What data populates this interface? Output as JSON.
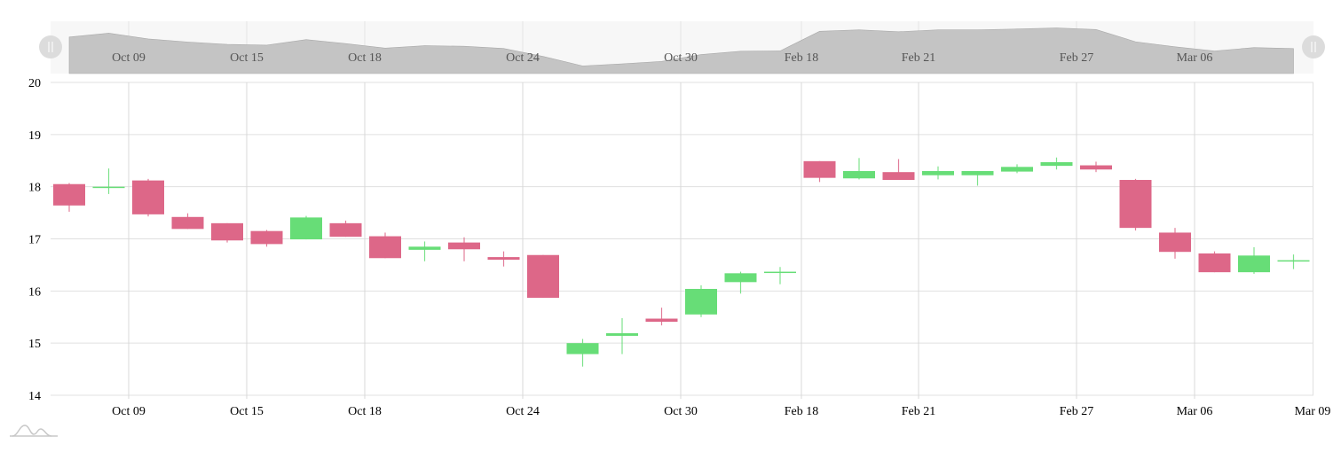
{
  "colors": {
    "up": "#67dd77",
    "down": "#dd6788",
    "grid": "#e0e0e0",
    "navigator_bg": "#f7f7f7",
    "navigator_area": "#c4c4c4",
    "handle": "#dcdcdc"
  },
  "navigator": {
    "labels": [
      "Oct 09",
      "Oct 15",
      "Oct 18",
      "Oct 24",
      "Oct 30",
      "Feb 18",
      "Feb 21",
      "Feb 27",
      "Mar 06"
    ],
    "left_handle": "scroll-handle-left",
    "right_handle": "scroll-handle-right"
  },
  "logo": "chart-logo-icon",
  "chart_data": {
    "type": "candlestick",
    "title": "",
    "xlabel": "",
    "ylabel": "",
    "ylim": [
      14,
      20
    ],
    "yticks": [
      14,
      15,
      16,
      17,
      18,
      19,
      20
    ],
    "grid": true,
    "legend": null,
    "x_tick_labels": [
      "Oct 09",
      "Oct 15",
      "Oct 18",
      "Oct 24",
      "Oct 30",
      "Feb 18",
      "Feb 21",
      "Feb 27",
      "Mar 06",
      "Mar 09"
    ],
    "candles": [
      {
        "i": 0,
        "open": 18.05,
        "high": 18.07,
        "low": 17.52,
        "close": 17.64
      },
      {
        "i": 1,
        "open": 18.0,
        "high": 18.35,
        "low": 17.86,
        "close": 18.0
      },
      {
        "i": 2,
        "open": 18.12,
        "high": 18.15,
        "low": 17.43,
        "close": 17.47
      },
      {
        "i": 3,
        "open": 17.42,
        "high": 17.49,
        "low": 17.19,
        "close": 17.19
      },
      {
        "i": 4,
        "open": 17.3,
        "high": 17.3,
        "low": 16.93,
        "close": 16.97
      },
      {
        "i": 5,
        "open": 17.15,
        "high": 17.17,
        "low": 16.85,
        "close": 16.9
      },
      {
        "i": 6,
        "open": 16.99,
        "high": 17.44,
        "low": 16.99,
        "close": 17.41
      },
      {
        "i": 7,
        "open": 17.3,
        "high": 17.35,
        "low": 17.04,
        "close": 17.04
      },
      {
        "i": 8,
        "open": 17.05,
        "high": 17.12,
        "low": 16.63,
        "close": 16.63
      },
      {
        "i": 9,
        "open": 16.79,
        "high": 16.95,
        "low": 16.57,
        "close": 16.85
      },
      {
        "i": 10,
        "open": 16.93,
        "high": 17.03,
        "low": 16.57,
        "close": 16.8
      },
      {
        "i": 11,
        "open": 16.65,
        "high": 16.76,
        "low": 16.47,
        "close": 16.6
      },
      {
        "i": 12,
        "open": 16.69,
        "high": 16.69,
        "low": 15.87,
        "close": 15.87
      },
      {
        "i": 13,
        "open": 14.79,
        "high": 15.08,
        "low": 14.55,
        "close": 15.0
      },
      {
        "i": 14,
        "open": 15.14,
        "high": 15.48,
        "low": 14.79,
        "close": 15.19
      },
      {
        "i": 15,
        "open": 15.47,
        "high": 15.68,
        "low": 15.34,
        "close": 15.41
      },
      {
        "i": 16,
        "open": 15.55,
        "high": 16.11,
        "low": 15.5,
        "close": 16.04
      },
      {
        "i": 17,
        "open": 16.17,
        "high": 16.37,
        "low": 15.95,
        "close": 16.34
      },
      {
        "i": 18,
        "open": 16.36,
        "high": 16.46,
        "low": 16.13,
        "close": 16.37
      },
      {
        "i": 19,
        "open": 18.49,
        "high": 18.49,
        "low": 18.09,
        "close": 18.17
      },
      {
        "i": 20,
        "open": 18.16,
        "high": 18.55,
        "low": 18.14,
        "close": 18.3
      },
      {
        "i": 21,
        "open": 18.28,
        "high": 18.53,
        "low": 18.13,
        "close": 18.13
      },
      {
        "i": 22,
        "open": 18.22,
        "high": 18.39,
        "low": 18.14,
        "close": 18.3
      },
      {
        "i": 23,
        "open": 18.22,
        "high": 18.3,
        "low": 18.02,
        "close": 18.3
      },
      {
        "i": 24,
        "open": 18.29,
        "high": 18.43,
        "low": 18.26,
        "close": 18.38
      },
      {
        "i": 25,
        "open": 18.4,
        "high": 18.56,
        "low": 18.33,
        "close": 18.47
      },
      {
        "i": 26,
        "open": 18.41,
        "high": 18.48,
        "low": 18.28,
        "close": 18.33
      },
      {
        "i": 27,
        "open": 18.13,
        "high": 18.15,
        "low": 17.16,
        "close": 17.21
      },
      {
        "i": 28,
        "open": 17.12,
        "high": 17.21,
        "low": 16.62,
        "close": 16.75
      },
      {
        "i": 29,
        "open": 16.72,
        "high": 16.76,
        "low": 16.36,
        "close": 16.36
      },
      {
        "i": 30,
        "open": 16.36,
        "high": 16.84,
        "low": 16.33,
        "close": 16.68
      },
      {
        "i": 31,
        "open": 16.58,
        "high": 16.7,
        "low": 16.42,
        "close": 16.59
      }
    ]
  }
}
